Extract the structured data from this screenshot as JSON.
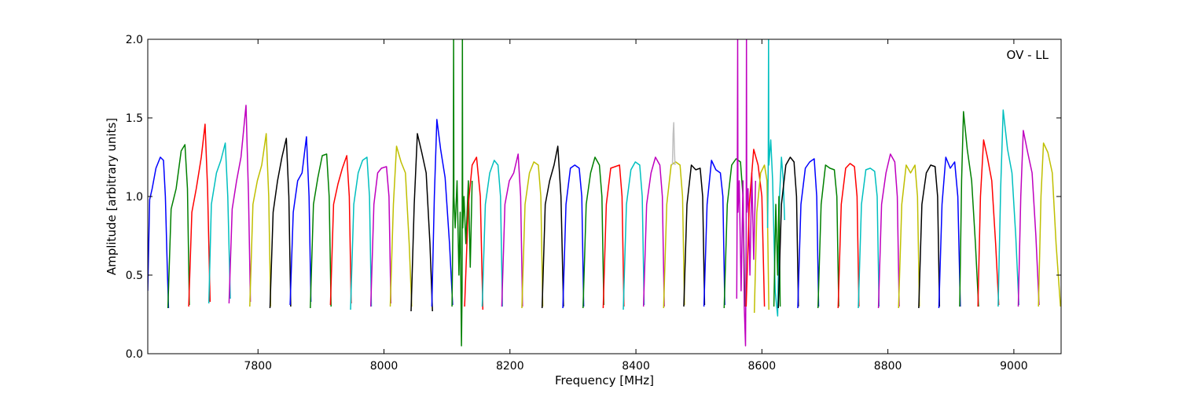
{
  "chart_data": {
    "type": "line",
    "title": "",
    "annotation": "OV - LL",
    "legend_placement": "top-right",
    "xlabel": "Frequency [MHz]",
    "ylabel": "Amplitude [arbitrary units]",
    "xlim": [
      7625,
      9075
    ],
    "ylim": [
      0.0,
      2.0
    ],
    "grid": false,
    "x_ticks": [
      {
        "value": 7800,
        "label": "7800"
      },
      {
        "value": 8000,
        "label": "8000"
      },
      {
        "value": 8200,
        "label": "8200"
      },
      {
        "value": 8400,
        "label": "8400"
      },
      {
        "value": 8600,
        "label": "8600"
      },
      {
        "value": 8800,
        "label": "8800"
      },
      {
        "value": 9000,
        "label": "9000"
      }
    ],
    "y_ticks": [
      {
        "value": 0.0,
        "label": "0.0"
      },
      {
        "value": 0.5,
        "label": "0.5"
      },
      {
        "value": 1.0,
        "label": "1.0"
      },
      {
        "value": 1.5,
        "label": "1.5"
      },
      {
        "value": 2.0,
        "label": "2.0"
      }
    ],
    "series": [
      {
        "color": "#0000ff",
        "x": [
          7625,
          7628,
          7632,
          7638,
          7645,
          7650,
          7653,
          7656,
          7658
        ],
        "y": [
          0.4,
          0.98,
          1.05,
          1.18,
          1.25,
          1.23,
          1.0,
          0.55,
          0.29
        ]
      },
      {
        "color": "#008000",
        "x": [
          7657,
          7662,
          7670,
          7678,
          7684,
          7688,
          7691
        ],
        "y": [
          0.29,
          0.92,
          1.05,
          1.29,
          1.33,
          1.05,
          0.31
        ]
      },
      {
        "color": "#ff0000",
        "x": [
          7690,
          7695,
          7702,
          7710,
          7716,
          7720,
          7724
        ],
        "y": [
          0.3,
          0.9,
          1.05,
          1.25,
          1.46,
          1.05,
          0.33
        ]
      },
      {
        "color": "#00bfbf",
        "x": [
          7722,
          7726,
          7734,
          7741,
          7748,
          7752,
          7756
        ],
        "y": [
          0.32,
          0.95,
          1.15,
          1.23,
          1.34,
          1.0,
          0.35
        ]
      },
      {
        "color": "#bf00bf",
        "x": [
          7754,
          7759,
          7766,
          7773,
          7781,
          7785,
          7788
        ],
        "y": [
          0.32,
          0.92,
          1.1,
          1.25,
          1.58,
          1.0,
          0.33
        ]
      },
      {
        "color": "#bfbf00",
        "x": [
          7787,
          7792,
          7799,
          7806,
          7813,
          7817,
          7820
        ],
        "y": [
          0.3,
          0.95,
          1.1,
          1.2,
          1.4,
          1.0,
          0.3
        ]
      },
      {
        "color": "#000000",
        "x": [
          7819,
          7824,
          7831,
          7838,
          7845,
          7849,
          7852
        ],
        "y": [
          0.29,
          0.9,
          1.1,
          1.25,
          1.37,
          1.0,
          0.3
        ]
      },
      {
        "color": "#0000ff",
        "x": [
          7851,
          7856,
          7863,
          7870,
          7877,
          7881,
          7884
        ],
        "y": [
          0.31,
          0.9,
          1.1,
          1.15,
          1.38,
          1.0,
          0.33
        ]
      },
      {
        "color": "#008000",
        "x": [
          7883,
          7888,
          7895,
          7902,
          7909,
          7913,
          7916
        ],
        "y": [
          0.29,
          0.95,
          1.12,
          1.26,
          1.27,
          1.0,
          0.3
        ]
      },
      {
        "color": "#ff0000",
        "x": [
          7915,
          7920,
          7927,
          7934,
          7941,
          7945,
          7948
        ],
        "y": [
          0.31,
          0.95,
          1.08,
          1.18,
          1.26,
          1.0,
          0.32
        ]
      },
      {
        "color": "#00bfbf",
        "x": [
          7947,
          7952,
          7959,
          7966,
          7973,
          7977,
          7980
        ],
        "y": [
          0.28,
          0.95,
          1.15,
          1.23,
          1.25,
          1.0,
          0.3
        ]
      },
      {
        "color": "#bf00bf",
        "x": [
          7979,
          7984,
          7990,
          7996,
          8004,
          8008,
          8011
        ],
        "y": [
          0.3,
          0.95,
          1.15,
          1.18,
          1.19,
          1.0,
          0.32
        ]
      },
      {
        "color": "#bfbf00",
        "x": [
          8010,
          8015,
          8020,
          8027,
          8034,
          8040,
          8044
        ],
        "y": [
          0.3,
          0.95,
          1.32,
          1.22,
          1.15,
          0.7,
          0.3
        ]
      },
      {
        "color": "#000000",
        "x": [
          8043,
          8048,
          8053,
          8060,
          8067,
          8073,
          8077
        ],
        "y": [
          0.27,
          0.95,
          1.4,
          1.28,
          1.15,
          0.7,
          0.27
        ]
      },
      {
        "color": "#0000ff",
        "x": [
          8076,
          8080,
          8084,
          8090,
          8097,
          8104,
          8109
        ],
        "y": [
          0.3,
          1.0,
          1.49,
          1.3,
          1.12,
          0.7,
          0.31
        ]
      },
      {
        "color": "#008000",
        "x": [
          8108,
          8110,
          8110.5,
          8111,
          8113,
          8116,
          8119,
          8121,
          8123,
          8124,
          8124.5,
          8125,
          8127,
          8130,
          8134,
          8137,
          8140
        ],
        "y": [
          0.3,
          1.05,
          2.0,
          1.0,
          0.8,
          1.1,
          0.5,
          0.9,
          0.05,
          0.4,
          2.0,
          0.8,
          1.0,
          0.7,
          1.1,
          0.55,
          1.1
        ]
      },
      {
        "color": "#ff0000",
        "x": [
          8128,
          8134,
          8140,
          8147,
          8153,
          8157
        ],
        "y": [
          0.3,
          0.95,
          1.2,
          1.25,
          1.0,
          0.28
        ]
      },
      {
        "color": "#00bfbf",
        "x": [
          8156,
          8161,
          8168,
          8175,
          8181,
          8185,
          8188
        ],
        "y": [
          0.3,
          0.95,
          1.15,
          1.23,
          1.2,
          1.0,
          0.3
        ]
      },
      {
        "color": "#bf00bf",
        "x": [
          8187,
          8192,
          8199,
          8206,
          8213,
          8217,
          8220
        ],
        "y": [
          0.3,
          0.95,
          1.1,
          1.15,
          1.27,
          1.0,
          0.3
        ]
      },
      {
        "color": "#bfbf00",
        "x": [
          8219,
          8224,
          8231,
          8238,
          8245,
          8249,
          8252
        ],
        "y": [
          0.29,
          0.95,
          1.15,
          1.22,
          1.2,
          1.0,
          0.3
        ]
      },
      {
        "color": "#000000",
        "x": [
          8251,
          8256,
          8263,
          8270,
          8276,
          8281,
          8285
        ],
        "y": [
          0.29,
          0.95,
          1.1,
          1.2,
          1.32,
          1.0,
          0.3
        ]
      },
      {
        "color": "#0000ff",
        "x": [
          8284,
          8289,
          8296,
          8303,
          8310,
          8314,
          8317
        ],
        "y": [
          0.29,
          0.95,
          1.18,
          1.2,
          1.18,
          1.0,
          0.3
        ]
      },
      {
        "color": "#008000",
        "x": [
          8316,
          8321,
          8328,
          8335,
          8342,
          8346,
          8349
        ],
        "y": [
          0.29,
          0.95,
          1.15,
          1.25,
          1.2,
          1.0,
          0.31
        ]
      },
      {
        "color": "#ff0000",
        "x": [
          8348,
          8353,
          8360,
          8367,
          8374,
          8378,
          8381
        ],
        "y": [
          0.29,
          0.95,
          1.18,
          1.19,
          1.2,
          1.0,
          0.3
        ]
      },
      {
        "color": "#00bfbf",
        "x": [
          8380,
          8385,
          8392,
          8399,
          8406,
          8410,
          8413
        ],
        "y": [
          0.28,
          0.95,
          1.17,
          1.22,
          1.2,
          1.0,
          0.31
        ]
      },
      {
        "color": "#bf00bf",
        "x": [
          8412,
          8417,
          8424,
          8431,
          8438,
          8442,
          8445
        ],
        "y": [
          0.3,
          0.95,
          1.15,
          1.25,
          1.2,
          1.0,
          0.3
        ]
      },
      {
        "color": "#bfbf00",
        "x": [
          8444,
          8449,
          8456,
          8463,
          8470,
          8474,
          8477
        ],
        "y": [
          0.29,
          0.95,
          1.2,
          1.22,
          1.2,
          1.0,
          0.31
        ]
      },
      {
        "color": "#bfbfbf",
        "x": [
          8458,
          8459,
          8460,
          8461,
          8462
        ],
        "y": [
          1.2,
          1.4,
          1.47,
          1.3,
          1.2
        ]
      },
      {
        "color": "#000000",
        "x": [
          8476,
          8481,
          8488,
          8495,
          8502,
          8506,
          8509
        ],
        "y": [
          0.3,
          0.95,
          1.2,
          1.17,
          1.18,
          1.0,
          0.31
        ]
      },
      {
        "color": "#0000ff",
        "x": [
          8508,
          8513,
          8520,
          8527,
          8534,
          8538,
          8541
        ],
        "y": [
          0.3,
          0.95,
          1.23,
          1.17,
          1.15,
          1.0,
          0.31
        ]
      },
      {
        "color": "#008000",
        "x": [
          8540,
          8545,
          8552,
          8559,
          8566,
          8570,
          8573
        ],
        "y": [
          0.29,
          0.95,
          1.2,
          1.24,
          1.22,
          1.0,
          0.3
        ]
      },
      {
        "color": "#bf00bf",
        "x": [
          8560,
          8561,
          8561.5,
          8562,
          8564,
          8567,
          8570,
          8572,
          8574,
          8575,
          8575.5,
          8576,
          8578,
          8581,
          8584,
          8587,
          8590
        ],
        "y": [
          0.35,
          1.2,
          2.0,
          0.9,
          1.1,
          0.4,
          1.1,
          0.3,
          0.05,
          0.7,
          2.0,
          0.9,
          1.05,
          0.5,
          1.15,
          0.6,
          1.1
        ]
      },
      {
        "color": "#ff0000",
        "x": [
          8575,
          8580,
          8587,
          8594,
          8600,
          8604
        ],
        "y": [
          0.3,
          0.95,
          1.3,
          1.2,
          1.0,
          0.3
        ]
      },
      {
        "color": "#bfbf00",
        "x": [
          8588,
          8592,
          8598,
          8604,
          8608,
          8611
        ],
        "y": [
          0.26,
          0.9,
          1.15,
          1.2,
          1.1,
          0.28
        ]
      },
      {
        "color": "#00bfbf",
        "x": [
          8609,
          8610,
          8610.5,
          8611,
          8614,
          8617,
          8621,
          8625,
          8628,
          8631,
          8634,
          8636
        ],
        "y": [
          0.8,
          1.2,
          2.0,
          1.2,
          1.36,
          1.1,
          0.4,
          0.24,
          1.0,
          1.25,
          1.1,
          0.85
        ]
      },
      {
        "color": "#008000",
        "x": [
          8619,
          8622,
          8625,
          8627,
          8629
        ],
        "y": [
          0.3,
          0.95,
          0.5,
          1.0,
          0.3
        ]
      },
      {
        "color": "#000000",
        "x": [
          8626,
          8631,
          8638,
          8645,
          8651,
          8655,
          8658
        ],
        "y": [
          0.29,
          0.95,
          1.2,
          1.25,
          1.22,
          1.0,
          0.3
        ]
      },
      {
        "color": "#0000ff",
        "x": [
          8657,
          8662,
          8669,
          8676,
          8683,
          8687,
          8690
        ],
        "y": [
          0.29,
          0.95,
          1.18,
          1.22,
          1.24,
          1.0,
          0.3
        ]
      },
      {
        "color": "#008000",
        "x": [
          8689,
          8694,
          8701,
          8708,
          8715,
          8719,
          8722
        ],
        "y": [
          0.29,
          0.95,
          1.2,
          1.18,
          1.17,
          1.0,
          0.3
        ]
      },
      {
        "color": "#ff0000",
        "x": [
          8721,
          8726,
          8733,
          8740,
          8747,
          8751,
          8754
        ],
        "y": [
          0.29,
          0.95,
          1.18,
          1.21,
          1.19,
          1.0,
          0.3
        ]
      },
      {
        "color": "#00bfbf",
        "x": [
          8753,
          8758,
          8765,
          8772,
          8779,
          8783,
          8786
        ],
        "y": [
          0.29,
          0.95,
          1.17,
          1.18,
          1.16,
          1.0,
          0.3
        ]
      },
      {
        "color": "#bf00bf",
        "x": [
          8785,
          8790,
          8797,
          8804,
          8811,
          8815,
          8818
        ],
        "y": [
          0.29,
          0.95,
          1.15,
          1.27,
          1.22,
          1.0,
          0.3
        ]
      },
      {
        "color": "#bfbf00",
        "x": [
          8817,
          8822,
          8829,
          8836,
          8843,
          8847,
          8850
        ],
        "y": [
          0.29,
          0.95,
          1.2,
          1.15,
          1.2,
          1.0,
          0.3
        ]
      },
      {
        "color": "#000000",
        "x": [
          8849,
          8854,
          8861,
          8868,
          8875,
          8879,
          8882
        ],
        "y": [
          0.29,
          0.95,
          1.15,
          1.2,
          1.19,
          1.0,
          0.3
        ]
      },
      {
        "color": "#0000ff",
        "x": [
          8881,
          8886,
          8892,
          8899,
          8906,
          8911,
          8915
        ],
        "y": [
          0.29,
          0.95,
          1.25,
          1.18,
          1.22,
          1.0,
          0.3
        ]
      },
      {
        "color": "#008000",
        "x": [
          8914,
          8917,
          8920,
          8926,
          8933,
          8939,
          8944
        ],
        "y": [
          0.3,
          1.1,
          1.54,
          1.3,
          1.1,
          0.7,
          0.3
        ]
      },
      {
        "color": "#ff0000",
        "x": [
          8943,
          8947,
          8952,
          8958,
          8965,
          8971,
          8976
        ],
        "y": [
          0.3,
          1.0,
          1.36,
          1.25,
          1.1,
          0.7,
          0.31
        ]
      },
      {
        "color": "#00bfbf",
        "x": [
          8975,
          8979,
          8983,
          8990,
          8997,
          9003,
          9008
        ],
        "y": [
          0.3,
          1.05,
          1.55,
          1.3,
          1.15,
          0.75,
          0.31
        ]
      },
      {
        "color": "#bf00bf",
        "x": [
          9007,
          9011,
          9015,
          9022,
          9029,
          9035,
          9040
        ],
        "y": [
          0.3,
          1.0,
          1.42,
          1.28,
          1.15,
          0.75,
          0.31
        ]
      },
      {
        "color": "#bfbf00",
        "x": [
          9039,
          9043,
          9047,
          9054,
          9061,
          9067,
          9074
        ],
        "y": [
          0.3,
          1.0,
          1.34,
          1.28,
          1.15,
          0.7,
          0.3
        ]
      }
    ]
  }
}
